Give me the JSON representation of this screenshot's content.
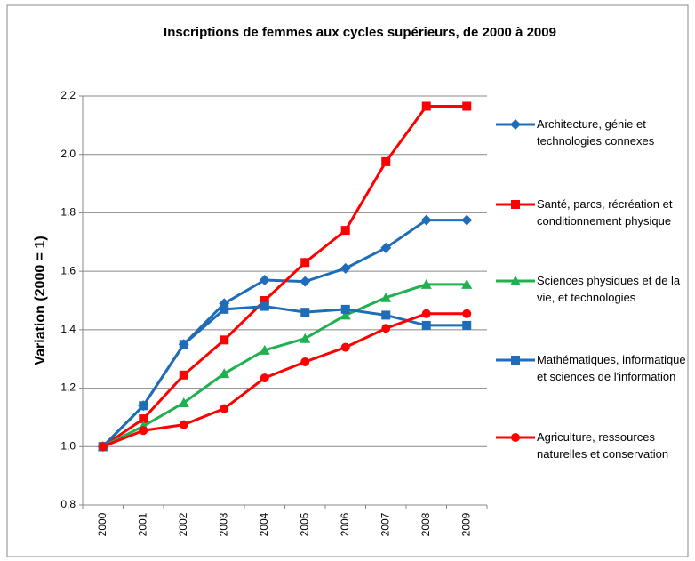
{
  "chart_data": {
    "type": "line",
    "title": "Inscriptions de femmes aux cycles supérieurs, de 2000 à 2009",
    "y_label": "Variation (2000 = 1)",
    "categories": [
      "2000",
      "2001",
      "2002",
      "2003",
      "2004",
      "2005",
      "2006",
      "2007",
      "2008",
      "2009"
    ],
    "series": [
      {
        "name": "Architecture, génie et technologies connexes",
        "color": "#1f6db8",
        "marker": "diamond",
        "values": [
          1.0,
          1.14,
          1.35,
          1.49,
          1.57,
          1.565,
          1.61,
          1.68,
          1.775,
          1.775
        ]
      },
      {
        "name": "Santé, parcs, récréation et conditionnement physique",
        "color": "#ff0000",
        "marker": "square",
        "values": [
          1.0,
          1.095,
          1.245,
          1.365,
          1.5,
          1.63,
          1.74,
          1.975,
          2.165,
          2.165
        ]
      },
      {
        "name": "Sciences physiques et de la vie, et technologies",
        "color": "#20b050",
        "marker": "triangle",
        "values": [
          1.0,
          1.07,
          1.15,
          1.25,
          1.33,
          1.37,
          1.45,
          1.51,
          1.555,
          1.555
        ]
      },
      {
        "name": "Mathématiques, informatique et sciences de l'information",
        "color": "#1f6db8",
        "marker": "square",
        "values": [
          1.0,
          1.14,
          1.35,
          1.47,
          1.48,
          1.46,
          1.47,
          1.45,
          1.415,
          1.415
        ]
      },
      {
        "name": "Agriculture, ressources naturelles et conservation",
        "color": "#ff0000",
        "marker": "circle",
        "values": [
          1.0,
          1.055,
          1.075,
          1.13,
          1.235,
          1.29,
          1.34,
          1.405,
          1.455,
          1.455
        ]
      }
    ],
    "ylim": [
      0.8,
      2.2
    ],
    "yticks": [
      {
        "value": 0.8,
        "label": "0,8"
      },
      {
        "value": 1.0,
        "label": "1,0"
      },
      {
        "value": 1.2,
        "label": "1,2"
      },
      {
        "value": 1.4,
        "label": "1,4"
      },
      {
        "value": 1.6,
        "label": "1,6"
      },
      {
        "value": 1.8,
        "label": "1,8"
      },
      {
        "value": 2.0,
        "label": "2,0"
      },
      {
        "value": 2.2,
        "label": "2,2"
      }
    ],
    "grid": true,
    "legend": "right"
  }
}
